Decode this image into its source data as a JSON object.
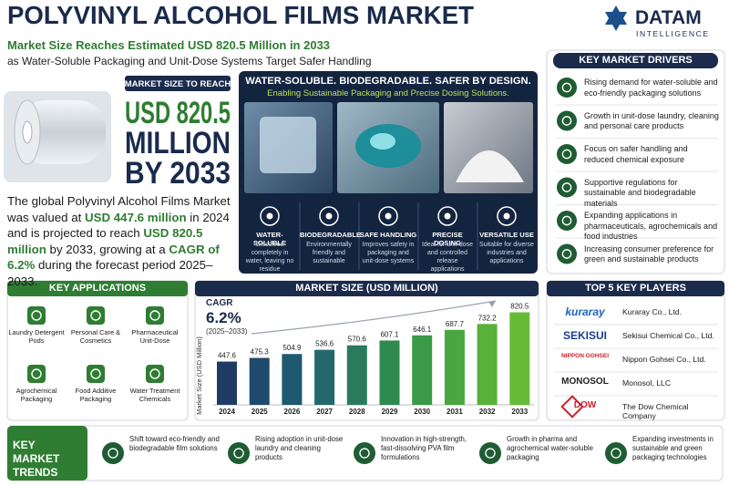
{
  "header": {
    "title": "POLYVINYL ALCOHOL FILMS MARKET",
    "subtitle": "Market Size Reaches Estimated USD 820.5 Million in 2033",
    "tagline": "as Water-Soluble Packaging and Unit-Dose Systems Target Safer Handling"
  },
  "logo": {
    "name": "DATAM",
    "sub": "INTELLIGENCE"
  },
  "market_size": {
    "badge": "MARKET SIZE TO REACH",
    "lines": [
      "USD 820.5",
      "MILLION",
      "BY 2033"
    ]
  },
  "summary": [
    "The global Polyvinyl Alcohol Films Market was valued at ",
    "USD 447.6 million",
    " in 2024 and is projected to reach ",
    "USD 820.5 million",
    " by 2033, growing at a ",
    "CAGR of 6.2%",
    " during the forecast period 2025–2033."
  ],
  "showcase": {
    "title": "WATER-SOLUBLE. BIODEGRADABLE. SAFER BY DESIGN.",
    "subtitle": "Enabling Sustainable Packaging and Precise Dosing Solutions.",
    "features": [
      {
        "title": "WATER-SOLUBLE",
        "text": "Dissolves completely in water, leaving no residue"
      },
      {
        "title": "BIODEGRADABLE",
        "text": "Environmentally friendly and sustainable"
      },
      {
        "title": "SAFE HANDLING",
        "text": "Improves safety in packaging and unit-dose systems"
      },
      {
        "title": "PRECISE DOSING",
        "text": "Ideal for unit-dose and controlled release applications"
      },
      {
        "title": "VERSATILE USE",
        "text": "Suitable for diverse industries and applications"
      }
    ]
  },
  "drivers": {
    "title": "KEY MARKET DRIVERS",
    "items": [
      "Rising demand for water-soluble and eco-friendly packaging solutions",
      "Growth in unit-dose laundry, cleaning and personal care products",
      "Focus on safer handling and reduced chemical exposure",
      "Supportive regulations for sustainable and biodegradable materials",
      "Expanding applications in pharmaceuticals, agrochemicals and food industries",
      "Increasing consumer preference for green and sustainable products"
    ]
  },
  "applications": {
    "title": "KEY APPLICATIONS",
    "items": [
      "Laundry Detergent Pods",
      "Personal Care & Cosmetics",
      "Pharmaceutical Unit-Dose",
      "Agrochemical Packaging",
      "Food Additive Packaging",
      "Water Treatment Chemicals"
    ]
  },
  "chart_data": {
    "type": "bar",
    "title": "MARKET SIZE (USD MILLION)",
    "annotation": {
      "label": "CAGR",
      "value": "6.2%",
      "period": "(2025–2033)"
    },
    "ylabel": "Market Size (USD Million)",
    "categories": [
      "2024",
      "2025",
      "2026",
      "2027",
      "2028",
      "2029",
      "2030",
      "2031",
      "2032",
      "2033"
    ],
    "values": [
      447.6,
      475.3,
      504.9,
      536.6,
      570.6,
      607.1,
      646.1,
      687.7,
      732.2,
      820.5
    ],
    "colors": [
      "#1f3b63",
      "#1f4a6e",
      "#1f5a70",
      "#23686c",
      "#2a7a5e",
      "#2f8a50",
      "#3a9a48",
      "#4aa640",
      "#58b23a",
      "#66bb36"
    ],
    "ylim": [
      120,
      900
    ]
  },
  "players": {
    "title": "TOP 5 KEY PLAYERS",
    "items": [
      {
        "logo": "kuraray",
        "name": "Kuraray Co., Ltd."
      },
      {
        "logo": "SEKISUI",
        "name": "Sekisui Chemical Co., Ltd."
      },
      {
        "logo": "NIPPON GOHSEI",
        "name": "Nippon Gohsei Co., Ltd."
      },
      {
        "logo": "MONOSOL",
        "name": "Monosol, LLC"
      },
      {
        "logo": "DOW",
        "name": "The Dow Chemical Company"
      }
    ]
  },
  "trends": {
    "title": "KEY MARKET TRENDS",
    "items": [
      "Shift toward eco-friendly and biodegradable film solutions",
      "Rising adoption in unit-dose laundry and cleaning products",
      "Innovation in high-strength, fast-dissolving PVA film formulations",
      "Growth in pharma and agrochemical water-soluble packaging",
      "Expanding investments in sustainable and green packaging technologies"
    ]
  }
}
